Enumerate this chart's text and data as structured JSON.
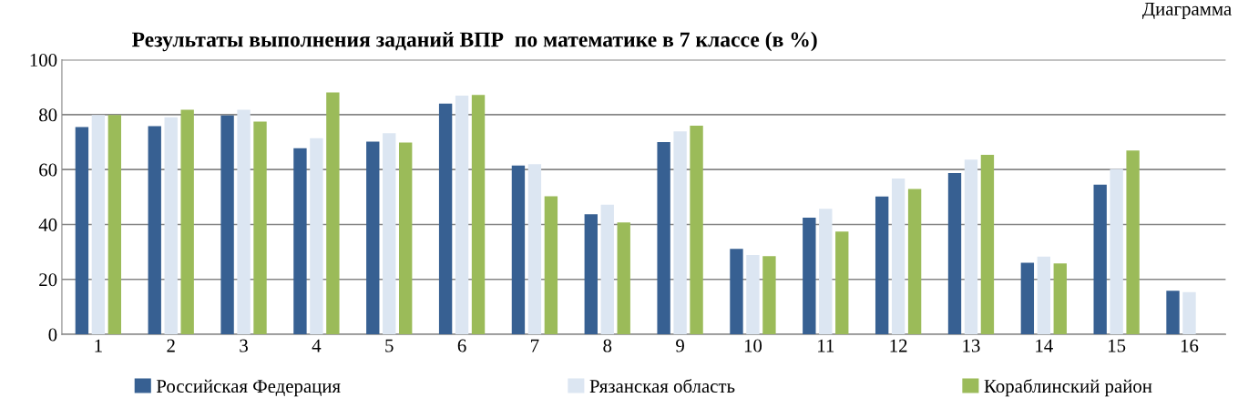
{
  "chart_data": {
    "type": "bar",
    "title": "Результаты выполнения заданий ВПР  по математике в 7 классе (в %)",
    "annotations": [
      "Диаграмма"
    ],
    "categories": [
      "1",
      "2",
      "3",
      "4",
      "5",
      "6",
      "7",
      "8",
      "9",
      "10",
      "11",
      "12",
      "13",
      "14",
      "15",
      "16"
    ],
    "series": [
      {
        "name": "Российская Федерация",
        "color": "#376092",
        "values": [
          75.5,
          75.8,
          79.7,
          67.8,
          70.2,
          84.0,
          61.5,
          43.7,
          70.0,
          31.1,
          42.5,
          50.2,
          58.7,
          26.1,
          54.5,
          15.9
        ]
      },
      {
        "name": "Рязанская область",
        "color": "#dce6f2",
        "values": [
          79.9,
          79.0,
          81.8,
          71.4,
          73.2,
          86.9,
          62.0,
          47.2,
          73.9,
          28.9,
          45.7,
          56.7,
          63.6,
          28.3,
          60.2,
          15.4
        ]
      },
      {
        "name": "Кораблинский район",
        "color": "#9bbb59",
        "values": [
          79.9,
          81.8,
          77.5,
          88.1,
          69.8,
          87.2,
          50.3,
          40.7,
          76.0,
          28.5,
          37.4,
          52.9,
          65.4,
          25.8,
          66.9,
          null
        ]
      }
    ],
    "ylim": [
      0,
      100
    ],
    "yticks": [
      0,
      20,
      40,
      60,
      80,
      100
    ],
    "grid": "y",
    "legend": "bottom"
  }
}
